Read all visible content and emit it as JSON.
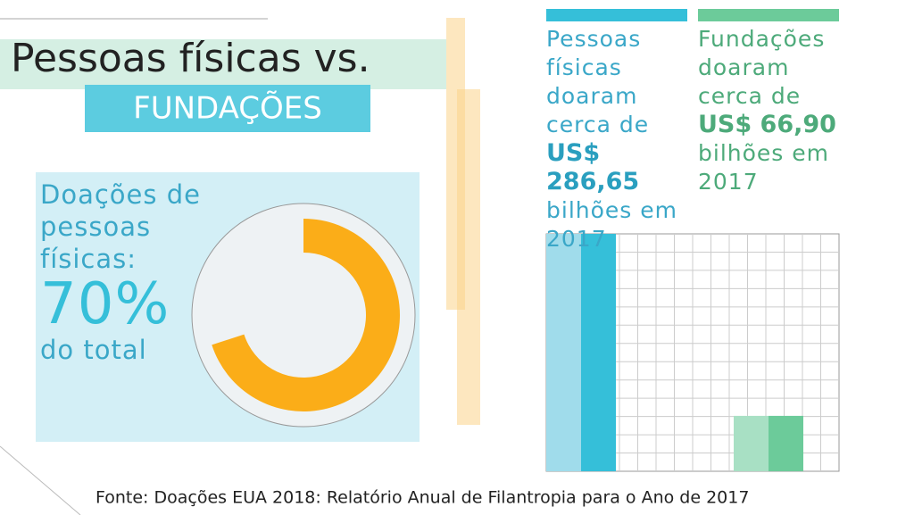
{
  "title": "Pessoas físicas vs.",
  "subtitle": "FUNDAÇÕES",
  "source": "Fonte: Doações EUA 2018: Relatório Anual de Filantropia para o Ano de 2017",
  "chart_data": [
    {
      "type": "pie",
      "annotations": [
        "Doações de pessoas físicas:",
        "do total"
      ],
      "values": [
        70
      ],
      "value_labels": [
        "70%"
      ],
      "color": "#fbad18"
    },
    {
      "type": "bar",
      "values": [
        286.65,
        66.9
      ],
      "value_labels": [
        "US$ 286,65",
        "US$ 66,90"
      ],
      "annotations": [
        [
          "Pessoas físicas doaram cerca de",
          "bilhões em 2017"
        ],
        [
          "Fundações doaram cerca de",
          "bilhões em 2017"
        ]
      ],
      "colors": [
        [
          "#a0dceb",
          "#35bfd9"
        ],
        [
          "#a8e0c4",
          "#6ccb9a"
        ]
      ],
      "ylim": [
        0,
        286.65
      ],
      "grid": true
    }
  ]
}
